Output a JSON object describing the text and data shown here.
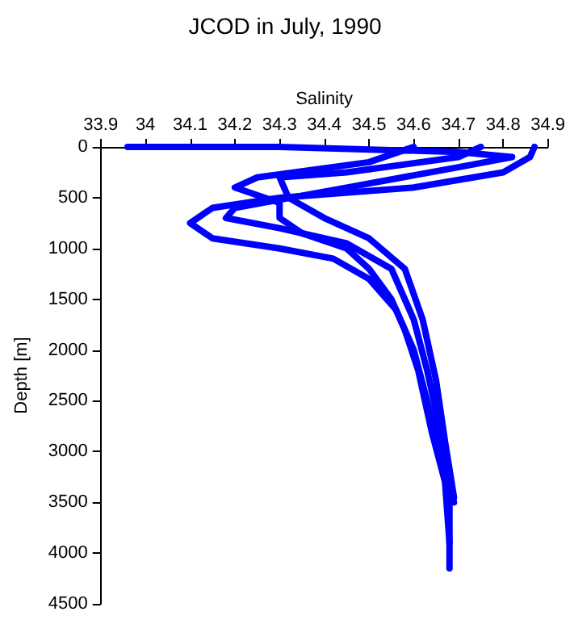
{
  "chart_data": {
    "type": "line",
    "title": "JCOD in July, 1990",
    "xlabel": "Salinity",
    "ylabel": "Depth [m]",
    "xlim": [
      33.9,
      34.9
    ],
    "xticks": [
      33.9,
      34,
      34.1,
      34.2,
      34.3,
      34.4,
      34.5,
      34.6,
      34.7,
      34.8,
      34.9
    ],
    "ylim": [
      4500,
      0
    ],
    "yticks": [
      0,
      500,
      1000,
      1500,
      2000,
      2500,
      3000,
      3500,
      4000,
      4500
    ],
    "grid": false,
    "marker": "none",
    "line_style": "solid",
    "series": [
      {
        "color": "#0000ff",
        "x": [
          34.87,
          34.86,
          34.8,
          34.6,
          34.3,
          34.15,
          34.1,
          34.15,
          34.3,
          34.42,
          34.5,
          34.56,
          34.6,
          34.63,
          34.66,
          34.68,
          34.68
        ],
        "values": [
          0,
          100,
          250,
          400,
          500,
          600,
          750,
          900,
          1000,
          1100,
          1300,
          1600,
          2000,
          2500,
          3000,
          3500,
          4150
        ]
      },
      {
        "color": "#0000ff",
        "x": [
          34.6,
          34.5,
          34.25,
          34.2,
          34.3,
          34.3,
          34.35,
          34.45,
          34.5,
          34.55,
          34.58,
          34.61,
          34.64,
          34.67,
          34.68
        ],
        "values": [
          0,
          150,
          300,
          400,
          550,
          700,
          850,
          1000,
          1200,
          1500,
          1800,
          2200,
          2800,
          3300,
          3900
        ]
      },
      {
        "color": "#0000ff",
        "x": [
          33.96,
          34.3,
          34.7,
          34.82,
          34.7,
          34.45,
          34.2,
          34.18,
          34.3,
          34.45,
          34.55,
          34.6,
          34.63,
          34.66,
          34.69
        ],
        "values": [
          0,
          0,
          50,
          100,
          200,
          400,
          600,
          700,
          800,
          950,
          1200,
          1700,
          2200,
          2800,
          3500
        ]
      },
      {
        "color": "#0000ff",
        "x": [
          34.75,
          34.7,
          34.45,
          34.3,
          34.32,
          34.4,
          34.5,
          34.58,
          34.62,
          34.65,
          34.67,
          34.69
        ],
        "values": [
          0,
          100,
          250,
          300,
          500,
          700,
          900,
          1200,
          1700,
          2300,
          2900,
          3450
        ]
      }
    ]
  }
}
